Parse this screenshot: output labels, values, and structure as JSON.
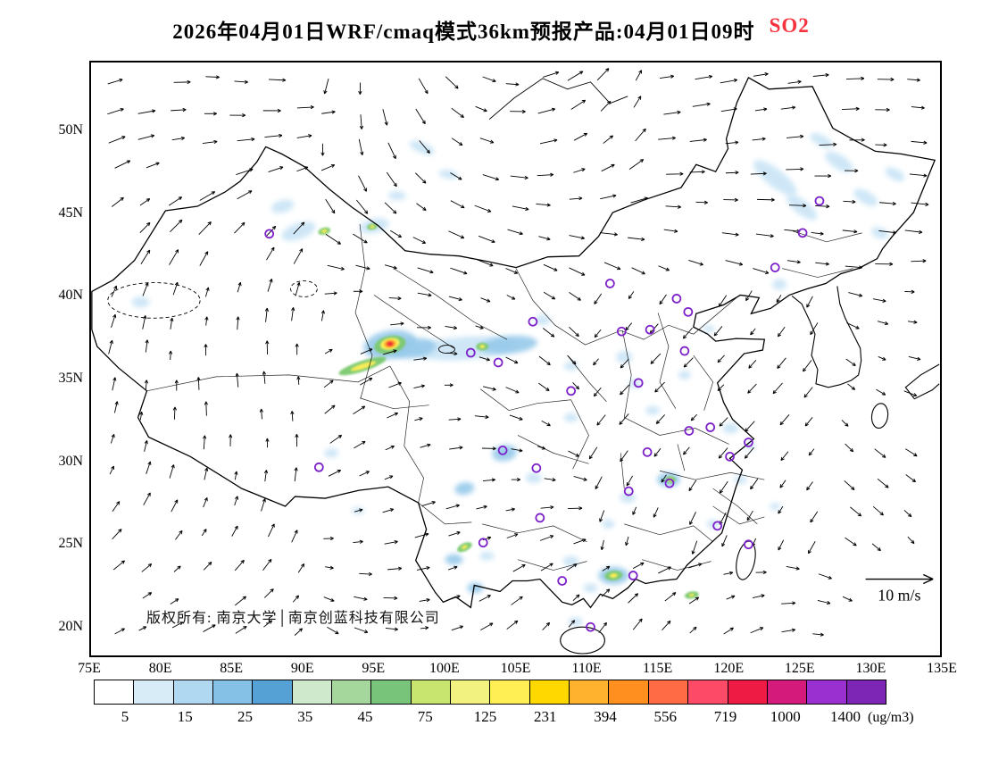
{
  "title": {
    "main": "2026年04月01日WRF/cmaq模式36km预报产品:04月01日09时",
    "species": "SO2",
    "species_color": "#f5333f"
  },
  "map": {
    "lat_ticks": [
      "50N",
      "45N",
      "40N",
      "35N",
      "30N",
      "25N",
      "20N"
    ],
    "lon_ticks": [
      "75E",
      "80E",
      "85E",
      "90E",
      "95E",
      "100E",
      "105E",
      "110E",
      "115E",
      "120E",
      "125E",
      "130E",
      "135E"
    ],
    "copyright": "版权所有: 南京大学│南京创蓝科技有限公司",
    "wind_legend": "10 m/s"
  },
  "colorbar": {
    "colors": [
      "#ffffff",
      "#d8ecf8",
      "#b0d8f0",
      "#85c0e6",
      "#55a0d5",
      "#cfe9cc",
      "#a5d79d",
      "#77c47a",
      "#c8e56f",
      "#f2f281",
      "#ffef54",
      "#ffd800",
      "#ffb22e",
      "#ff8f1f",
      "#ff6b45",
      "#fd4b67",
      "#ee1c45",
      "#d41a7a",
      "#9b30d0",
      "#7d26b5"
    ],
    "tick_labels": [
      "5",
      "15",
      "25",
      "35",
      "45",
      "75",
      "125",
      "231",
      "394",
      "556",
      "719",
      "1000",
      "1400"
    ],
    "unit": "(ug/m3)"
  }
}
